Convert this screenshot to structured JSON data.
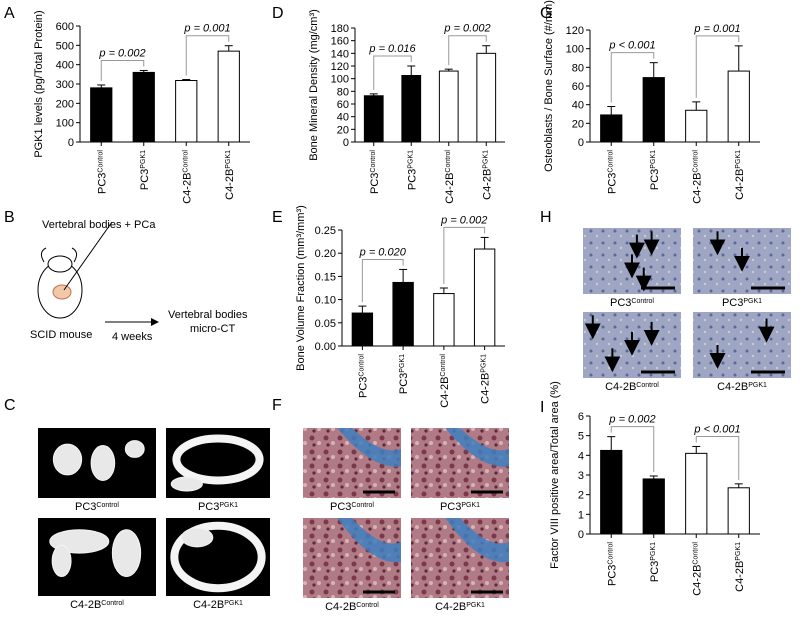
{
  "panel_labels": [
    "A",
    "B",
    "C",
    "D",
    "E",
    "F",
    "G",
    "H",
    "I"
  ],
  "chart_data": [
    {
      "type": "bar",
      "y_label": "PGK1 levels (pg/Total Protein)",
      "categories": [
        "PC3",
        "PC3",
        "C4-2B",
        "C4-2B"
      ],
      "category_superscripts": [
        "Control",
        "PGK1",
        "Control",
        "PGK1"
      ],
      "values": [
        280,
        360,
        318,
        470
      ],
      "errors": [
        15,
        10,
        5,
        28
      ],
      "colors": [
        "#000000",
        "#000000",
        "#ffffff",
        "#ffffff"
      ],
      "ylim": [
        0,
        600
      ],
      "yticks": [
        0,
        100,
        200,
        300,
        400,
        500,
        600
      ],
      "annotations": [
        "p = 0.002",
        "p = 0.001"
      ]
    },
    {
      "type": "bar",
      "y_label": "Bone Mineral Density (mg/cm³)",
      "categories": [
        "PC3",
        "PC3",
        "C4-2B",
        "C4-2B"
      ],
      "category_superscripts": [
        "Control",
        "PGK1",
        "Control",
        "PGK1"
      ],
      "values": [
        73,
        105,
        112,
        140
      ],
      "errors": [
        3,
        15,
        3,
        12
      ],
      "colors": [
        "#000000",
        "#000000",
        "#ffffff",
        "#ffffff"
      ],
      "ylim": [
        0,
        180
      ],
      "yticks": [
        0,
        20,
        40,
        60,
        80,
        100,
        120,
        140,
        160,
        180
      ],
      "annotations": [
        "p = 0.016",
        "p = 0.002"
      ]
    },
    {
      "type": "bar",
      "y_label": "Osteoblasts / Bone Surface (#/mm)",
      "categories": [
        "PC3",
        "PC3",
        "C4-2B",
        "C4-2B"
      ],
      "category_superscripts": [
        "Control",
        "PGK1",
        "Control",
        "PGK1"
      ],
      "values": [
        29,
        69,
        34,
        76
      ],
      "errors": [
        9,
        16,
        9,
        27
      ],
      "colors": [
        "#000000",
        "#000000",
        "#ffffff",
        "#ffffff"
      ],
      "ylim": [
        0,
        120
      ],
      "yticks": [
        0,
        20,
        40,
        60,
        80,
        100,
        120
      ],
      "annotations": [
        "p < 0.001",
        "p = 0.001"
      ]
    },
    {
      "type": "bar",
      "y_label": "Bone Volume Fraction (mm³/mm³)",
      "categories": [
        "PC3",
        "PC3",
        "C4-2B",
        "C4-2B"
      ],
      "category_superscripts": [
        "Control",
        "PGK1",
        "Control",
        "PGK1"
      ],
      "values": [
        0.071,
        0.137,
        0.113,
        0.209
      ],
      "errors": [
        0.015,
        0.028,
        0.012,
        0.025
      ],
      "colors": [
        "#000000",
        "#000000",
        "#ffffff",
        "#ffffff"
      ],
      "ylim": [
        0,
        0.25
      ],
      "yticks": [
        {
          "value": 0,
          "label": "0.00"
        },
        0.05,
        {
          "value": 0.1,
          "label": "0.10"
        },
        0.15,
        {
          "value": 0.2,
          "label": "0.20"
        },
        0.25
      ],
      "annotations": [
        "p = 0.020",
        "p = 0.002"
      ]
    },
    {
      "type": "bar",
      "y_label": "Factor VIII positive area/Total area (%)",
      "categories": [
        "PC3",
        "PC3",
        "C4-2B",
        "C4-2B"
      ],
      "category_superscripts": [
        "Control",
        "PGK1",
        "Control",
        "PGK1"
      ],
      "values": [
        4.25,
        2.8,
        4.1,
        2.35
      ],
      "errors": [
        0.7,
        0.15,
        0.35,
        0.2
      ],
      "colors": [
        "#000000",
        "#000000",
        "#ffffff",
        "#ffffff"
      ],
      "ylim": [
        0,
        6
      ],
      "yticks": [
        0,
        1,
        2,
        3,
        4,
        5,
        6
      ],
      "annotations": [
        "p = 0.002",
        "p < 0.001"
      ]
    }
  ],
  "diagram_b": {
    "injection": "Vertebral bodies + PCa",
    "mouse": "SCID mouse",
    "duration": "4 weeks",
    "result_line1": "Vertebral bodies",
    "result_line2": "micro-CT"
  },
  "images_c": [
    {
      "name": "PC3",
      "sup": "Control"
    },
    {
      "name": "PC3",
      "sup": "PGK1"
    },
    {
      "name": "C4-2B",
      "sup": "Control"
    },
    {
      "name": "C4-2B",
      "sup": "PGK1"
    }
  ],
  "images_f": [
    {
      "name": "PC3",
      "sup": "Control"
    },
    {
      "name": "PC3",
      "sup": "PGK1"
    },
    {
      "name": "C4-2B",
      "sup": "Control"
    },
    {
      "name": "C4-2B",
      "sup": "PGK1"
    }
  ],
  "images_h": [
    {
      "name": "PC3",
      "sup": "Control"
    },
    {
      "name": "PC3",
      "sup": "PGK1"
    },
    {
      "name": "C4-2B",
      "sup": "Control"
    },
    {
      "name": "C4-2B",
      "sup": "PGK1"
    }
  ]
}
